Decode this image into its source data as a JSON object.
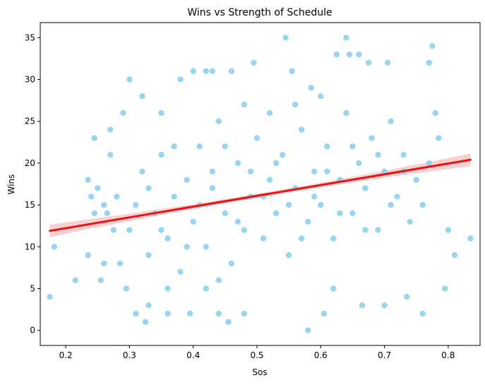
{
  "chart_data": {
    "type": "scatter",
    "title": "Wins vs Strength of Schedule",
    "xlabel": "Sos",
    "ylabel": "Wins",
    "xlim": [
      0.16,
      0.85
    ],
    "ylim": [
      -1.8,
      36.8
    ],
    "xticks": [
      0.2,
      0.3,
      0.4,
      0.5,
      0.6,
      0.7,
      0.8
    ],
    "yticks": [
      0,
      5,
      10,
      15,
      20,
      25,
      30,
      35
    ],
    "grid": false,
    "legend": "none",
    "colors": {
      "points": "#87CEEB",
      "regression_line": "#EE1111",
      "confidence_band": "#F4C2C2"
    },
    "regression": {
      "x_start": 0.175,
      "y_start": 11.9,
      "x_end": 0.835,
      "y_end": 20.4,
      "band_halfwidth_ends": 0.75,
      "band_halfwidth_center": 0.25
    },
    "series": [
      {
        "values": [
          {
            "x": 0.175,
            "y": 4
          },
          {
            "x": 0.182,
            "y": 10
          },
          {
            "x": 0.215,
            "y": 6
          },
          {
            "x": 0.235,
            "y": 18
          },
          {
            "x": 0.235,
            "y": 9
          },
          {
            "x": 0.24,
            "y": 16
          },
          {
            "x": 0.245,
            "y": 23
          },
          {
            "x": 0.245,
            "y": 14
          },
          {
            "x": 0.25,
            "y": 17
          },
          {
            "x": 0.255,
            "y": 6
          },
          {
            "x": 0.26,
            "y": 15
          },
          {
            "x": 0.26,
            "y": 8
          },
          {
            "x": 0.265,
            "y": 14
          },
          {
            "x": 0.27,
            "y": 21
          },
          {
            "x": 0.27,
            "y": 24
          },
          {
            "x": 0.275,
            "y": 12
          },
          {
            "x": 0.28,
            "y": 16
          },
          {
            "x": 0.285,
            "y": 8
          },
          {
            "x": 0.29,
            "y": 26
          },
          {
            "x": 0.295,
            "y": 5
          },
          {
            "x": 0.3,
            "y": 30
          },
          {
            "x": 0.31,
            "y": 2
          },
          {
            "x": 0.32,
            "y": 28
          },
          {
            "x": 0.325,
            "y": 1
          },
          {
            "x": 0.33,
            "y": 3
          },
          {
            "x": 0.35,
            "y": 26
          },
          {
            "x": 0.36,
            "y": 2
          },
          {
            "x": 0.38,
            "y": 30
          },
          {
            "x": 0.395,
            "y": 2
          },
          {
            "x": 0.4,
            "y": 31
          },
          {
            "x": 0.42,
            "y": 31
          },
          {
            "x": 0.43,
            "y": 31
          },
          {
            "x": 0.44,
            "y": 2
          },
          {
            "x": 0.455,
            "y": 1
          },
          {
            "x": 0.46,
            "y": 31
          },
          {
            "x": 0.48,
            "y": 2
          },
          {
            "x": 0.495,
            "y": 32
          },
          {
            "x": 0.545,
            "y": 35
          },
          {
            "x": 0.555,
            "y": 31
          },
          {
            "x": 0.58,
            "y": 0
          },
          {
            "x": 0.585,
            "y": 29
          },
          {
            "x": 0.6,
            "y": 28
          },
          {
            "x": 0.605,
            "y": 2
          },
          {
            "x": 0.62,
            "y": 5
          },
          {
            "x": 0.625,
            "y": 33
          },
          {
            "x": 0.64,
            "y": 35
          },
          {
            "x": 0.645,
            "y": 33
          },
          {
            "x": 0.66,
            "y": 33
          },
          {
            "x": 0.665,
            "y": 3
          },
          {
            "x": 0.675,
            "y": 32
          },
          {
            "x": 0.7,
            "y": 3
          },
          {
            "x": 0.705,
            "y": 32
          },
          {
            "x": 0.735,
            "y": 4
          },
          {
            "x": 0.76,
            "y": 2
          },
          {
            "x": 0.77,
            "y": 32
          },
          {
            "x": 0.775,
            "y": 34
          },
          {
            "x": 0.78,
            "y": 26
          },
          {
            "x": 0.785,
            "y": 23
          },
          {
            "x": 0.795,
            "y": 5
          },
          {
            "x": 0.8,
            "y": 12
          },
          {
            "x": 0.81,
            "y": 9
          },
          {
            "x": 0.835,
            "y": 11
          },
          {
            "x": 0.3,
            "y": 12
          },
          {
            "x": 0.31,
            "y": 15
          },
          {
            "x": 0.32,
            "y": 19
          },
          {
            "x": 0.33,
            "y": 9
          },
          {
            "x": 0.34,
            "y": 14
          },
          {
            "x": 0.35,
            "y": 21
          },
          {
            "x": 0.36,
            "y": 11
          },
          {
            "x": 0.37,
            "y": 16
          },
          {
            "x": 0.38,
            "y": 7
          },
          {
            "x": 0.39,
            "y": 18
          },
          {
            "x": 0.4,
            "y": 13
          },
          {
            "x": 0.41,
            "y": 22
          },
          {
            "x": 0.42,
            "y": 10
          },
          {
            "x": 0.43,
            "y": 17
          },
          {
            "x": 0.44,
            "y": 25
          },
          {
            "x": 0.45,
            "y": 14
          },
          {
            "x": 0.46,
            "y": 8
          },
          {
            "x": 0.47,
            "y": 20
          },
          {
            "x": 0.48,
            "y": 12
          },
          {
            "x": 0.49,
            "y": 16
          },
          {
            "x": 0.5,
            "y": 23
          },
          {
            "x": 0.51,
            "y": 11
          },
          {
            "x": 0.52,
            "y": 18
          },
          {
            "x": 0.53,
            "y": 14
          },
          {
            "x": 0.54,
            "y": 21
          },
          {
            "x": 0.55,
            "y": 9
          },
          {
            "x": 0.56,
            "y": 17
          },
          {
            "x": 0.57,
            "y": 24
          },
          {
            "x": 0.58,
            "y": 13
          },
          {
            "x": 0.59,
            "y": 19
          },
          {
            "x": 0.6,
            "y": 15
          },
          {
            "x": 0.61,
            "y": 22
          },
          {
            "x": 0.62,
            "y": 11
          },
          {
            "x": 0.63,
            "y": 18
          },
          {
            "x": 0.64,
            "y": 26
          },
          {
            "x": 0.65,
            "y": 14
          },
          {
            "x": 0.66,
            "y": 20
          },
          {
            "x": 0.67,
            "y": 17
          },
          {
            "x": 0.68,
            "y": 23
          },
          {
            "x": 0.69,
            "y": 12
          },
          {
            "x": 0.7,
            "y": 19
          },
          {
            "x": 0.71,
            "y": 25
          },
          {
            "x": 0.72,
            "y": 16
          },
          {
            "x": 0.73,
            "y": 21
          },
          {
            "x": 0.74,
            "y": 13
          },
          {
            "x": 0.75,
            "y": 18
          },
          {
            "x": 0.76,
            "y": 15
          },
          {
            "x": 0.77,
            "y": 20
          },
          {
            "x": 0.33,
            "y": 17
          },
          {
            "x": 0.35,
            "y": 12
          },
          {
            "x": 0.37,
            "y": 22
          },
          {
            "x": 0.39,
            "y": 10
          },
          {
            "x": 0.41,
            "y": 15
          },
          {
            "x": 0.43,
            "y": 19
          },
          {
            "x": 0.45,
            "y": 22
          },
          {
            "x": 0.47,
            "y": 13
          },
          {
            "x": 0.49,
            "y": 19
          },
          {
            "x": 0.51,
            "y": 16
          },
          {
            "x": 0.53,
            "y": 20
          },
          {
            "x": 0.55,
            "y": 15
          },
          {
            "x": 0.57,
            "y": 11
          },
          {
            "x": 0.59,
            "y": 16
          },
          {
            "x": 0.61,
            "y": 19
          },
          {
            "x": 0.63,
            "y": 14
          },
          {
            "x": 0.65,
            "y": 22
          },
          {
            "x": 0.67,
            "y": 12
          },
          {
            "x": 0.69,
            "y": 21
          },
          {
            "x": 0.71,
            "y": 15
          },
          {
            "x": 0.73,
            "y": 19
          },
          {
            "x": 0.42,
            "y": 5
          },
          {
            "x": 0.44,
            "y": 6
          },
          {
            "x": 0.36,
            "y": 5
          },
          {
            "x": 0.48,
            "y": 27
          },
          {
            "x": 0.52,
            "y": 26
          },
          {
            "x": 0.56,
            "y": 27
          }
        ]
      }
    ]
  }
}
